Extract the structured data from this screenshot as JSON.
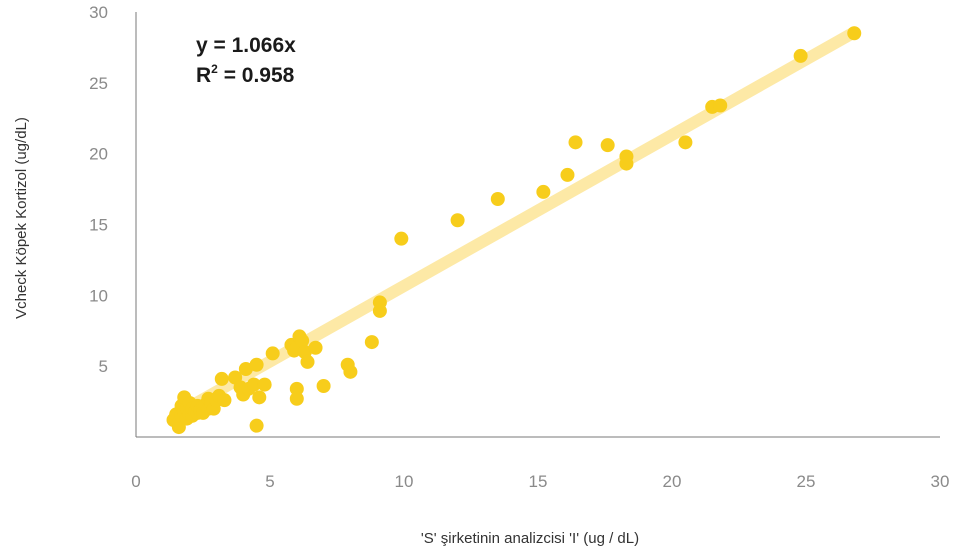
{
  "chart_data": {
    "type": "scatter",
    "xlabel": "'S' şirketinin analizcisi 'I' (ug / dL)",
    "ylabel": "Vcheck Köpek Kortizol (ug/dL)",
    "xlim": [
      0,
      30
    ],
    "ylim": [
      0,
      30
    ],
    "x_ticks": [
      "0",
      "5",
      "10",
      "15",
      "20",
      "25",
      "30"
    ],
    "y_ticks": [
      "5",
      "10",
      "15",
      "20",
      "25",
      "30"
    ],
    "grid": false,
    "legend": "none",
    "annotation": {
      "equation": "y = 1.066x",
      "r_squared_label": "R",
      "r_squared_sup": "2",
      "r_squared_value": " = 0.958"
    },
    "trendline": {
      "slope": 1.066,
      "x_range": [
        1.5,
        26.8
      ],
      "color": "#fde9a6"
    },
    "point_color": "#f7cd1b",
    "points": [
      [
        1.4,
        1.2
      ],
      [
        1.5,
        1.6
      ],
      [
        1.6,
        0.7
      ],
      [
        1.6,
        1.0
      ],
      [
        1.7,
        1.5
      ],
      [
        1.7,
        2.2
      ],
      [
        1.8,
        2.8
      ],
      [
        1.8,
        1.8
      ],
      [
        1.9,
        1.3
      ],
      [
        1.9,
        2.0
      ],
      [
        2.0,
        1.6
      ],
      [
        2.0,
        2.4
      ],
      [
        2.1,
        1.5
      ],
      [
        2.1,
        2.0
      ],
      [
        2.2,
        1.8
      ],
      [
        2.3,
        1.7
      ],
      [
        2.3,
        2.2
      ],
      [
        2.4,
        1.9
      ],
      [
        2.5,
        2.1
      ],
      [
        2.5,
        1.7
      ],
      [
        2.6,
        2.3
      ],
      [
        2.7,
        2.0
      ],
      [
        2.7,
        2.7
      ],
      [
        2.8,
        2.4
      ],
      [
        2.9,
        2.0
      ],
      [
        3.0,
        2.6
      ],
      [
        3.1,
        2.9
      ],
      [
        3.2,
        4.1
      ],
      [
        3.3,
        2.6
      ],
      [
        3.7,
        4.2
      ],
      [
        3.9,
        3.5
      ],
      [
        4.0,
        3.0
      ],
      [
        4.1,
        4.8
      ],
      [
        4.2,
        3.4
      ],
      [
        4.4,
        3.7
      ],
      [
        4.5,
        5.1
      ],
      [
        4.6,
        2.8
      ],
      [
        4.5,
        0.8
      ],
      [
        4.8,
        3.7
      ],
      [
        5.1,
        5.9
      ],
      [
        5.8,
        6.5
      ],
      [
        5.9,
        6.1
      ],
      [
        6.0,
        6.3
      ],
      [
        6.1,
        7.1
      ],
      [
        6.2,
        6.8
      ],
      [
        6.3,
        6.0
      ],
      [
        6.4,
        5.3
      ],
      [
        6.7,
        6.3
      ],
      [
        6.0,
        3.4
      ],
      [
        6.0,
        2.7
      ],
      [
        7.0,
        3.6
      ],
      [
        7.9,
        5.1
      ],
      [
        8.0,
        4.6
      ],
      [
        8.8,
        6.7
      ],
      [
        9.1,
        9.5
      ],
      [
        9.1,
        8.9
      ],
      [
        9.9,
        14.0
      ],
      [
        12.0,
        15.3
      ],
      [
        13.5,
        16.8
      ],
      [
        15.2,
        17.3
      ],
      [
        16.1,
        18.5
      ],
      [
        16.4,
        20.8
      ],
      [
        17.6,
        20.6
      ],
      [
        18.3,
        19.3
      ],
      [
        18.3,
        19.8
      ],
      [
        20.5,
        20.8
      ],
      [
        21.5,
        23.3
      ],
      [
        21.8,
        23.4
      ],
      [
        24.8,
        26.9
      ],
      [
        26.8,
        28.5
      ]
    ]
  }
}
